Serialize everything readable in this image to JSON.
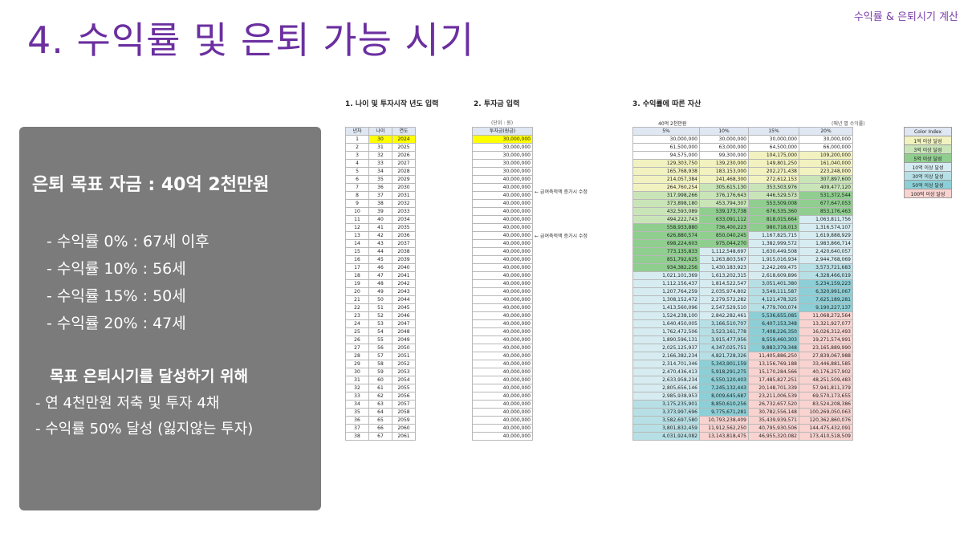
{
  "header": {
    "top_tag": "수익률 & 은퇴시기 계산",
    "title": "4. 수익률 및 은퇴 가능 시기"
  },
  "panel": {
    "goal": "은퇴 목표 자금 : 40억 2천만원",
    "returns": [
      "- 수익률    0% : 67세 이후",
      "- 수익률 10% : 56세",
      "- 수익률 15% : 50세",
      "- 수익률 20% : 47세"
    ],
    "subtitle": "목표 은퇴시기를 달성하기 위해",
    "plans": [
      "- 연 4천만원 저축 및 투자 4채",
      "- 수익률 50% 달성 (잃지않는 투자)"
    ]
  },
  "sheet": {
    "section1": "1. 나이 및 투자시작 년도 입력",
    "section2": "2. 투자금 입력",
    "section3": "3. 수익률에 따른 자산",
    "unit_label": "(단위 : 원)",
    "target_label": "40억 2천만원",
    "rate_note": "(매년 별 수익률)",
    "col_year_no": "년차",
    "col_age": "나이",
    "col_year": "연도",
    "col_invest": "투자금(원금)",
    "rate_headers": [
      "5%",
      "10%",
      "15%",
      "20%"
    ],
    "note1": "← 급여축적액 증가시 수정",
    "note2": "← 급여축적액 증가시 수정",
    "legend_title": "Color Index",
    "legend": [
      {
        "label": "1억 이상 달성",
        "color": "#f2f2c0"
      },
      {
        "label": "3억 이상 달성",
        "color": "#c9e5b8"
      },
      {
        "label": "5억 이상 달성",
        "color": "#8fce8f"
      },
      {
        "label": "10억 이상 달성",
        "color": "#d6ecf1"
      },
      {
        "label": "30억 이상 달성",
        "color": "#b7e0e6"
      },
      {
        "label": "50억 이상 달성",
        "color": "#8ccfd6"
      },
      {
        "label": "100억 이상 달성",
        "color": "#f8d3d0"
      }
    ],
    "rows": [
      [
        "1",
        "30",
        "2024",
        "30,000,000",
        "30,000,000",
        "30,000,000",
        "30,000,000",
        "30,000,000"
      ],
      [
        "2",
        "31",
        "2025",
        "30,000,000",
        "61,500,000",
        "63,000,000",
        "64,500,000",
        "66,000,000"
      ],
      [
        "3",
        "32",
        "2026",
        "30,000,000",
        "94,575,000",
        "99,300,000",
        "104,175,000",
        "109,200,000"
      ],
      [
        "4",
        "33",
        "2027",
        "30,000,000",
        "129,303,750",
        "139,230,000",
        "149,801,250",
        "161,040,000"
      ],
      [
        "5",
        "34",
        "2028",
        "30,000,000",
        "165,768,938",
        "183,153,000",
        "202,271,438",
        "223,248,000"
      ],
      [
        "6",
        "35",
        "2029",
        "40,000,000",
        "214,057,384",
        "241,468,300",
        "272,612,153",
        "307,897,600"
      ],
      [
        "7",
        "36",
        "2030",
        "40,000,000",
        "264,760,254",
        "305,615,130",
        "353,503,976",
        "409,477,120"
      ],
      [
        "8",
        "37",
        "2031",
        "40,000,000",
        "317,998,266",
        "376,176,643",
        "446,529,573",
        "531,372,544"
      ],
      [
        "9",
        "38",
        "2032",
        "40,000,000",
        "373,898,180",
        "453,794,307",
        "553,509,008",
        "677,647,053"
      ],
      [
        "10",
        "39",
        "2033",
        "40,000,000",
        "432,593,089",
        "539,173,738",
        "676,535,360",
        "853,176,463"
      ],
      [
        "11",
        "40",
        "2034",
        "40,000,000",
        "494,222,743",
        "633,091,112",
        "818,015,664",
        "1,063,811,756"
      ],
      [
        "12",
        "41",
        "2035",
        "40,000,000",
        "558,933,880",
        "736,400,223",
        "980,718,013",
        "1,316,574,107"
      ],
      [
        "13",
        "42",
        "2036",
        "40,000,000",
        "626,880,574",
        "850,040,245",
        "1,167,825,715",
        "1,619,888,929"
      ],
      [
        "14",
        "43",
        "2037",
        "40,000,000",
        "698,224,603",
        "975,044,270",
        "1,382,999,572",
        "1,983,866,714"
      ],
      [
        "15",
        "44",
        "2038",
        "40,000,000",
        "773,135,833",
        "1,112,548,697",
        "1,630,449,508",
        "2,420,640,057"
      ],
      [
        "16",
        "45",
        "2039",
        "40,000,000",
        "851,792,625",
        "1,263,803,567",
        "1,915,016,934",
        "2,944,768,069"
      ],
      [
        "17",
        "46",
        "2040",
        "40,000,000",
        "934,382,256",
        "1,430,183,923",
        "2,242,269,475",
        "3,573,721,683"
      ],
      [
        "18",
        "47",
        "2041",
        "40,000,000",
        "1,021,101,369",
        "1,613,202,315",
        "2,618,609,896",
        "4,328,466,019"
      ],
      [
        "19",
        "48",
        "2042",
        "40,000,000",
        "1,112,156,437",
        "1,814,522,547",
        "3,051,401,380",
        "5,234,159,223"
      ],
      [
        "20",
        "49",
        "2043",
        "40,000,000",
        "1,207,764,259",
        "2,035,974,802",
        "3,549,111,587",
        "6,320,991,067"
      ],
      [
        "21",
        "50",
        "2044",
        "40,000,000",
        "1,308,152,472",
        "2,279,572,282",
        "4,121,478,325",
        "7,625,189,281"
      ],
      [
        "22",
        "51",
        "2045",
        "40,000,000",
        "1,413,560,096",
        "2,547,529,510",
        "4,779,700,074",
        "9,190,227,137"
      ],
      [
        "23",
        "52",
        "2046",
        "40,000,000",
        "1,524,238,100",
        "2,842,282,461",
        "5,536,655,085",
        "11,068,272,564"
      ],
      [
        "24",
        "53",
        "2047",
        "40,000,000",
        "1,640,450,005",
        "3,166,510,707",
        "6,407,153,348",
        "13,321,927,077"
      ],
      [
        "25",
        "54",
        "2048",
        "40,000,000",
        "1,762,472,506",
        "3,523,161,778",
        "7,408,226,350",
        "16,026,312,493"
      ],
      [
        "26",
        "55",
        "2049",
        "40,000,000",
        "1,890,596,131",
        "3,915,477,956",
        "8,559,460,303",
        "19,271,574,991"
      ],
      [
        "27",
        "56",
        "2050",
        "40,000,000",
        "2,025,125,937",
        "4,347,025,751",
        "9,883,379,348",
        "23,165,889,990"
      ],
      [
        "28",
        "57",
        "2051",
        "40,000,000",
        "2,166,382,234",
        "4,821,728,326",
        "11,405,886,250",
        "27,839,067,988"
      ],
      [
        "29",
        "58",
        "2052",
        "40,000,000",
        "2,314,701,346",
        "5,343,901,159",
        "13,156,769,188",
        "33,446,881,585"
      ],
      [
        "30",
        "59",
        "2053",
        "40,000,000",
        "2,470,436,413",
        "5,918,291,275",
        "15,170,284,566",
        "40,176,257,902"
      ],
      [
        "31",
        "60",
        "2054",
        "40,000,000",
        "2,633,958,234",
        "6,550,120,403",
        "17,485,827,251",
        "48,251,509,483"
      ],
      [
        "32",
        "61",
        "2055",
        "40,000,000",
        "2,805,656,146",
        "7,245,132,443",
        "20,148,701,339",
        "57,941,811,379"
      ],
      [
        "33",
        "62",
        "2056",
        "40,000,000",
        "2,985,938,953",
        "8,009,645,687",
        "23,211,006,539",
        "69,570,173,655"
      ],
      [
        "34",
        "63",
        "2057",
        "40,000,000",
        "3,175,235,901",
        "8,850,610,256",
        "26,732,657,520",
        "83,524,208,386"
      ],
      [
        "35",
        "64",
        "2058",
        "40,000,000",
        "3,373,997,696",
        "9,775,671,281",
        "30,782,556,148",
        "100,269,050,063"
      ],
      [
        "36",
        "65",
        "2059",
        "40,000,000",
        "3,582,697,580",
        "10,793,238,409",
        "35,439,939,571",
        "120,362,860,076"
      ],
      [
        "37",
        "66",
        "2060",
        "40,000,000",
        "3,801,832,459",
        "11,912,562,250",
        "40,795,930,506",
        "144,475,432,091"
      ],
      [
        "38",
        "67",
        "2061",
        "40,000,000",
        "4,031,924,082",
        "13,143,818,475",
        "46,955,320,082",
        "173,410,518,509"
      ]
    ]
  }
}
